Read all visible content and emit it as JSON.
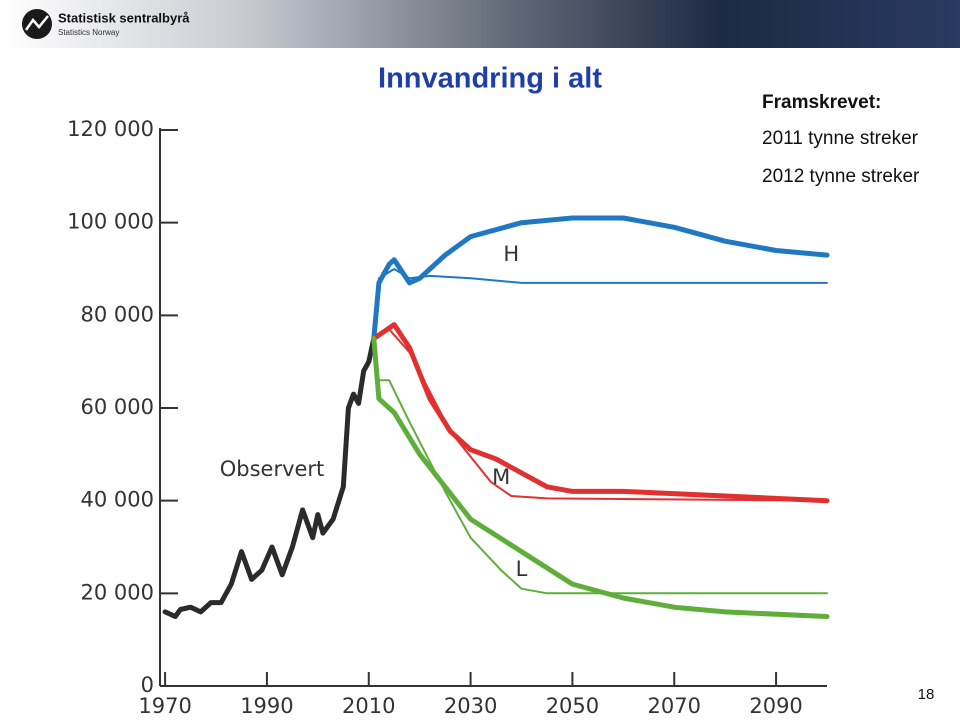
{
  "header": {
    "logo_title": "Statistisk sentralbyrå",
    "logo_subtitle": "Statistics Norway"
  },
  "page_number": "18",
  "chart_data": {
    "type": "line",
    "title": "Innvandring i alt",
    "note_title": "Framskrevet:",
    "notes": [
      "2011 tynne streker",
      "2012 tynne streker"
    ],
    "annotations": [
      {
        "text": "Observert",
        "x": 1991,
        "y": 46600
      },
      {
        "text": "H",
        "x": 2038,
        "y": 93000
      },
      {
        "text": "M",
        "x": 2036,
        "y": 44900
      },
      {
        "text": "L",
        "x": 2040,
        "y": 25000
      }
    ],
    "xlim": [
      1969,
      2100
    ],
    "xticks": [
      1970,
      1990,
      2010,
      2030,
      2050,
      2070,
      2090
    ],
    "ylim": [
      0,
      120000
    ],
    "yticks": [
      0,
      {
        "value": 20000,
        "label": "20 000"
      },
      {
        "value": 40000,
        "label": "40 000"
      },
      {
        "value": 60000,
        "label": "60 000"
      },
      {
        "value": 80000,
        "label": "80 000"
      },
      {
        "value": 100000,
        "label": "100 000"
      },
      {
        "value": 120000,
        "label": "120 000"
      }
    ],
    "series": [
      {
        "color": "#2b2b2b",
        "line_width": 5,
        "x": [
          1970,
          1972,
          1973,
          1975,
          1977,
          1979,
          1981,
          1983,
          1985,
          1987,
          1989,
          1991,
          1993,
          1995,
          1997,
          1999,
          2000,
          2001,
          2003,
          2005,
          2006,
          2007,
          2008,
          2009,
          2010,
          2011
        ],
        "values": [
          16000,
          15000,
          16500,
          17000,
          16000,
          18000,
          18000,
          22000,
          29000,
          23000,
          25000,
          30000,
          24000,
          30000,
          38000,
          32000,
          37000,
          33000,
          36000,
          43000,
          60000,
          63000,
          61000,
          68000,
          70000,
          75000
        ]
      },
      {
        "color": "#1f78c1",
        "line_width": 2,
        "x": [
          2011,
          2012,
          2015,
          2018,
          2022,
          2030,
          2040,
          2100
        ],
        "values": [
          75000,
          88000,
          90000,
          88000,
          88500,
          88000,
          87000,
          87000
        ]
      },
      {
        "color": "#1f78c1",
        "line_width": 5,
        "x": [
          2011,
          2012,
          2014,
          2015,
          2018,
          2020,
          2025,
          2030,
          2040,
          2050,
          2060,
          2070,
          2080,
          2090,
          2100
        ],
        "values": [
          75000,
          87000,
          91000,
          92000,
          87000,
          88000,
          93000,
          97000,
          100000,
          101000,
          101000,
          99000,
          96000,
          94000,
          93000
        ]
      },
      {
        "color": "#e03030",
        "line_width": 2,
        "x": [
          2011,
          2014,
          2018,
          2026,
          2034,
          2038,
          2045,
          2100
        ],
        "values": [
          75000,
          77000,
          72000,
          55000,
          44000,
          41000,
          40500,
          40000
        ]
      },
      {
        "color": "#e03030",
        "line_width": 5,
        "x": [
          2011,
          2015,
          2018,
          2022,
          2026,
          2030,
          2035,
          2040,
          2045,
          2050,
          2060,
          2080,
          2100
        ],
        "values": [
          75000,
          78000,
          73000,
          62000,
          55000,
          51000,
          49000,
          46000,
          43000,
          42000,
          42000,
          41000,
          40000
        ]
      },
      {
        "color": "#5fae3c",
        "line_width": 2,
        "x": [
          2011,
          2012,
          2014,
          2018,
          2025,
          2030,
          2036,
          2040,
          2045,
          2100
        ],
        "values": [
          72000,
          66000,
          66000,
          57000,
          42000,
          32000,
          25000,
          21000,
          20000,
          20000
        ]
      },
      {
        "color": "#5fae3c",
        "line_width": 5,
        "x": [
          2011,
          2012,
          2015,
          2020,
          2025,
          2030,
          2040,
          2050,
          2060,
          2070,
          2080,
          2100
        ],
        "values": [
          75000,
          62000,
          59000,
          50000,
          43000,
          36000,
          29000,
          22000,
          19000,
          17000,
          16000,
          15000
        ]
      }
    ]
  }
}
